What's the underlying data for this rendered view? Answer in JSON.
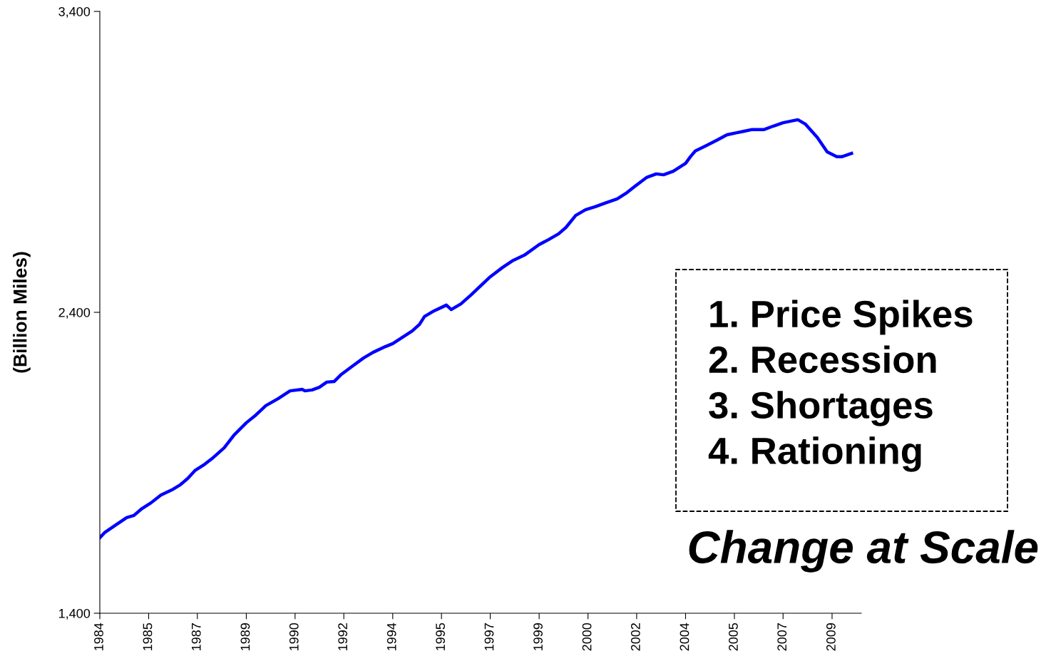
{
  "chart_data": {
    "type": "line",
    "ylabel": "(Billion Miles)",
    "x": [
      "1984-01",
      "1984-03",
      "1984-08",
      "1984-12",
      "1985-03",
      "1985-06",
      "1985-10",
      "1986-02",
      "1986-07",
      "1986-10",
      "1987-01",
      "1987-04",
      "1987-08",
      "1987-11",
      "1988-04",
      "1988-08",
      "1989-01",
      "1989-05",
      "1989-09",
      "1990-02",
      "1990-07",
      "1990-12",
      "1991-01",
      "1991-04",
      "1991-07",
      "1991-10",
      "1992-01",
      "1992-04",
      "1992-08",
      "1993-01",
      "1993-05",
      "1993-10",
      "1994-01",
      "1994-05",
      "1994-09",
      "1994-12",
      "1995-02",
      "1995-06",
      "1995-11",
      "1996-01",
      "1996-05",
      "1996-09",
      "1997-01",
      "1997-05",
      "1997-10",
      "1998-02",
      "1998-07",
      "1999-01",
      "1999-05",
      "1999-09",
      "1999-12",
      "2000-04",
      "2000-08",
      "2000-12",
      "2001-04",
      "2001-09",
      "2002-01",
      "2002-04",
      "2002-09",
      "2003-01",
      "2003-04",
      "2003-08",
      "2004-01",
      "2004-03",
      "2004-05",
      "2004-09",
      "2005-02",
      "2005-06",
      "2005-10",
      "2006-01",
      "2006-04",
      "2006-09",
      "2007-01",
      "2007-05",
      "2007-11",
      "2008-02",
      "2008-07",
      "2008-11",
      "2009-03",
      "2009-05",
      "2009-09"
    ],
    "series": [
      {
        "color": "#0000ff",
        "values": [
          1651,
          1668,
          1696,
          1718,
          1725,
          1746,
          1767,
          1793,
          1812,
          1827,
          1848,
          1874,
          1895,
          1914,
          1950,
          1992,
          2033,
          2059,
          2090,
          2113,
          2139,
          2144,
          2139,
          2142,
          2151,
          2168,
          2170,
          2194,
          2218,
          2248,
          2267,
          2286,
          2296,
          2317,
          2338,
          2360,
          2386,
          2405,
          2424,
          2409,
          2428,
          2457,
          2488,
          2518,
          2549,
          2571,
          2590,
          2625,
          2642,
          2661,
          2682,
          2722,
          2741,
          2751,
          2763,
          2777,
          2798,
          2817,
          2848,
          2860,
          2857,
          2869,
          2895,
          2917,
          2936,
          2952,
          2973,
          2990,
          2997,
          3002,
          3007,
          3007,
          3019,
          3030,
          3040,
          3026,
          2981,
          2933,
          2917,
          2917,
          2928
        ]
      }
    ],
    "xlim": [
      "1984-01",
      "2010-01"
    ],
    "xticks": [
      {
        "value": "1984-01",
        "label": "1984"
      },
      {
        "value": "1985-09",
        "label": "1985"
      },
      {
        "value": "1987-05",
        "label": "1987"
      },
      {
        "value": "1989-01",
        "label": "1989"
      },
      {
        "value": "1990-09",
        "label": "1990"
      },
      {
        "value": "1992-05",
        "label": "1992"
      },
      {
        "value": "1994-01",
        "label": "1994"
      },
      {
        "value": "1995-09",
        "label": "1995"
      },
      {
        "value": "1997-05",
        "label": "1997"
      },
      {
        "value": "1999-01",
        "label": "1999"
      },
      {
        "value": "2000-09",
        "label": "2000"
      },
      {
        "value": "2002-05",
        "label": "2002"
      },
      {
        "value": "2004-01",
        "label": "2004"
      },
      {
        "value": "2005-09",
        "label": "2005"
      },
      {
        "value": "2007-05",
        "label": "2007"
      },
      {
        "value": "2009-01",
        "label": "2009"
      }
    ],
    "ylim": [
      1400,
      3400
    ],
    "yticks": [
      {
        "value": 1400,
        "label": "1,400"
      },
      {
        "value": 2400,
        "label": "2,400"
      },
      {
        "value": 3400,
        "label": "3,400"
      }
    ],
    "grid": false,
    "legend": false,
    "marker": "none",
    "line_style": "solid",
    "annotations": [
      "1. Price Spikes",
      "2. Recession",
      "3. Shortages",
      "4. Rationing",
      "Change at Scale"
    ]
  }
}
